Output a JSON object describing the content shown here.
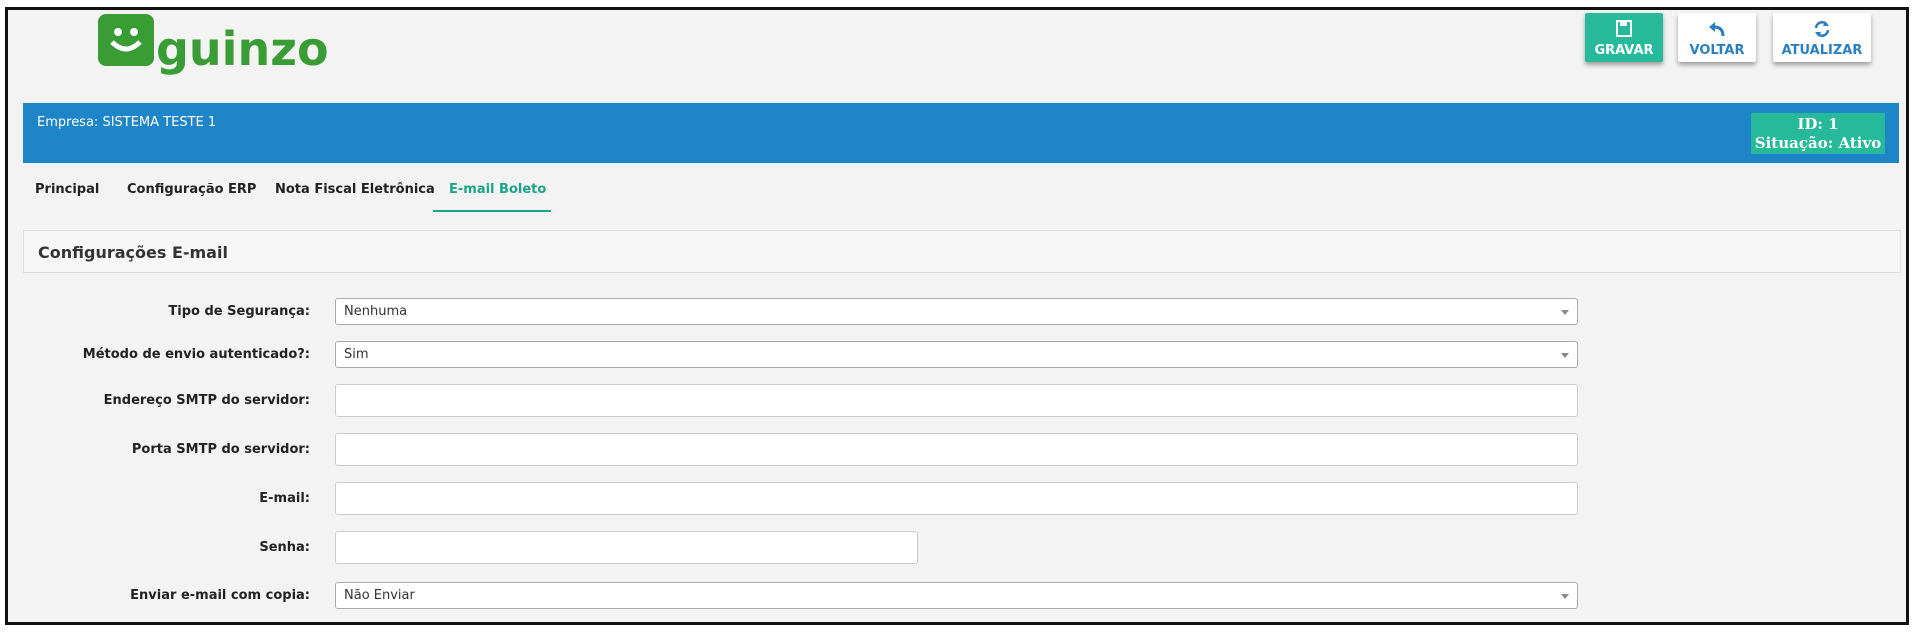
{
  "header": {
    "logo": "guinzo",
    "buttons": [
      "GRAVAR",
      "VOLTAR",
      "ATUALIZAR"
    ]
  },
  "company": {
    "name": "Empresa: SISTEMA TESTE 1",
    "id": "ID: 1",
    "status": "Situação: Ativo"
  },
  "tabs": [
    "Principal",
    "Configuração ERP",
    "Nota Fiscal Eletrônica",
    "E-mail Boleto"
  ],
  "panel": {
    "title": "Configurações E-mail"
  },
  "form": {
    "fields": [
      {
        "label": "Tipo de Segurança:",
        "value": "Nenhuma"
      },
      {
        "label": "Método de envio autenticado?:",
        "value": "Sim"
      },
      {
        "label": "Endereço SMTP do servidor:"
      },
      {
        "label": "Porta SMTP do servidor:"
      },
      {
        "label": "E-mail:"
      },
      {
        "label": "Senha:"
      },
      {
        "label": "Enviar e-mail com copia:",
        "value": "Não Enviar"
      }
    ]
  }
}
